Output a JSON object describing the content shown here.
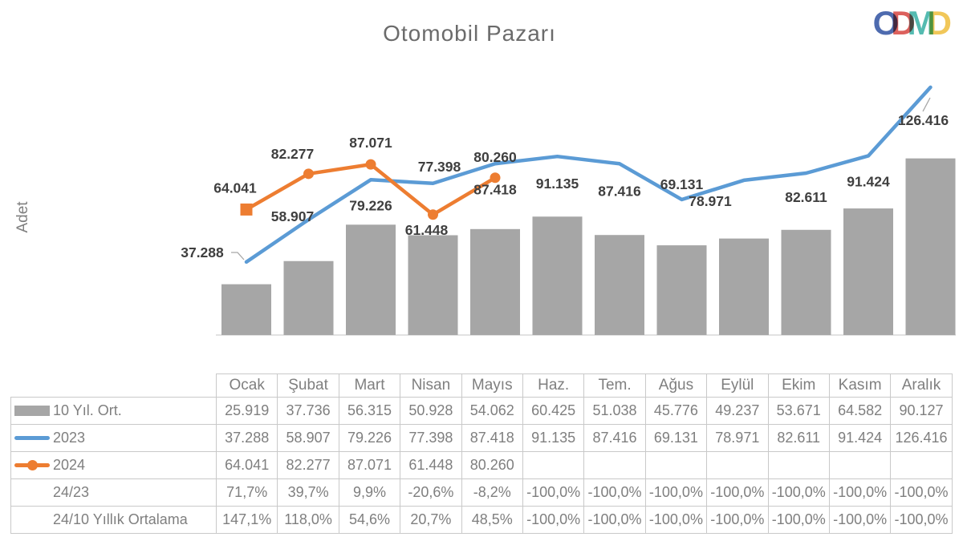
{
  "title": "Otomobil Pazarı",
  "y_axis_label": "Adet",
  "logo": {
    "letters": [
      {
        "char": "O",
        "color": "#3f5ea8"
      },
      {
        "char": "D",
        "color": "#d9534f"
      },
      {
        "char": "M",
        "color": "#45b5aa"
      },
      {
        "char": "D",
        "color": "#f0c24b"
      }
    ]
  },
  "colors": {
    "bar": "#a6a6a6",
    "line2023": "#5b9bd5",
    "line2024": "#ed7d31",
    "data_label": "#3f3f3f",
    "axis_line": "#d9d9d9",
    "table_border": "#c9c9c9",
    "table_text": "#7f7f7f",
    "leader_line": "#a6a6a6"
  },
  "chart_data": {
    "type": "combo-bar-line",
    "title": "Otomobil Pazarı",
    "ylabel": "Adet",
    "xlabel": "",
    "ylim": [
      0,
      143000
    ],
    "gridlines": false,
    "legend_position": "in-table",
    "categories": [
      "Ocak",
      "Şubat",
      "Mart",
      "Nisan",
      "Mayıs",
      "Haz.",
      "Tem.",
      "Ağus",
      "Eylül",
      "Ekim",
      "Kasım",
      "Aralık"
    ],
    "series": [
      {
        "name": "10 Yıl. Ort.",
        "type": "bar",
        "color": "#a6a6a6",
        "values": [
          25919,
          37736,
          56315,
          50928,
          54062,
          60425,
          51038,
          45776,
          49237,
          53671,
          64582,
          90127
        ]
      },
      {
        "name": "2023",
        "type": "line",
        "color": "#5b9bd5",
        "marker": "none",
        "values": [
          37288,
          58907,
          79226,
          77398,
          87418,
          91135,
          87416,
          69131,
          78971,
          82611,
          91424,
          126416
        ],
        "labels": [
          "37.288",
          "58.907",
          "79.226",
          "77.398",
          "87.418",
          "91.135",
          "87.416",
          "69.131",
          "78.971",
          "82.611",
          "91.424",
          "126.416"
        ]
      },
      {
        "name": "2024",
        "type": "line",
        "color": "#ed7d31",
        "marker": "circle",
        "values": [
          64041,
          82277,
          87071,
          61448,
          80260
        ],
        "labels": [
          "64.041",
          "82.277",
          "87.071",
          "61.448",
          "80.260"
        ]
      }
    ]
  },
  "table": {
    "columns": [
      "Ocak",
      "Şubat",
      "Mart",
      "Nisan",
      "Mayıs",
      "Haz.",
      "Tem.",
      "Ağus",
      "Eylül",
      "Ekim",
      "Kasım",
      "Aralık"
    ],
    "rows": [
      {
        "label": "10 Yıl. Ort.",
        "swatch": "bar",
        "cells": [
          "25.919",
          "37.736",
          "56.315",
          "50.928",
          "54.062",
          "60.425",
          "51.038",
          "45.776",
          "49.237",
          "53.671",
          "64.582",
          "90.127"
        ]
      },
      {
        "label": "2023",
        "swatch": "line2023",
        "cells": [
          "37.288",
          "58.907",
          "79.226",
          "77.398",
          "87.418",
          "91.135",
          "87.416",
          "69.131",
          "78.971",
          "82.611",
          "91.424",
          "126.416"
        ]
      },
      {
        "label": "2024",
        "swatch": "line2024",
        "cells": [
          "64.041",
          "82.277",
          "87.071",
          "61.448",
          "80.260",
          "",
          "",
          "",
          "",
          "",
          "",
          ""
        ]
      },
      {
        "label": "24/23",
        "swatch": "none",
        "cells": [
          "71,7%",
          "39,7%",
          "9,9%",
          "-20,6%",
          "-8,2%",
          "-100,0%",
          "-100,0%",
          "-100,0%",
          "-100,0%",
          "-100,0%",
          "-100,0%",
          "-100,0%"
        ]
      },
      {
        "label": "24/10 Yıllık Ortalama",
        "swatch": "none",
        "cells": [
          "147,1%",
          "118,0%",
          "54,6%",
          "20,7%",
          "48,5%",
          "-100,0%",
          "-100,0%",
          "-100,0%",
          "-100,0%",
          "-100,0%",
          "-100,0%",
          "-100,0%"
        ]
      }
    ]
  }
}
